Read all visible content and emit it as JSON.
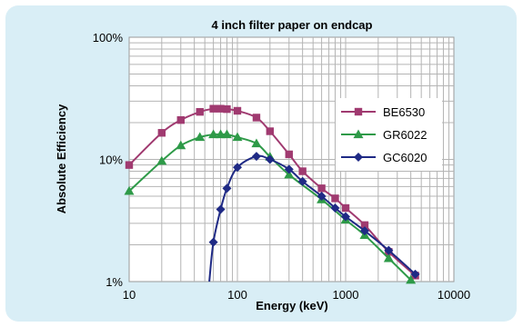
{
  "chart_data": {
    "type": "line",
    "title": "4 inch filter paper on endcap",
    "xlabel": "Energy (keV)",
    "ylabel": "Absolute Efficiency",
    "xscale": "log",
    "yscale": "log",
    "xlim": [
      10,
      10000
    ],
    "ylim": [
      0.01,
      1
    ],
    "grid": true,
    "legend_position": "right",
    "xticks": [
      {
        "value": 10,
        "label": "10"
      },
      {
        "value": 100,
        "label": "100"
      },
      {
        "value": 1000,
        "label": "1000"
      },
      {
        "value": 10000,
        "label": "10000"
      }
    ],
    "yticks": [
      {
        "value": 0.01,
        "label": "1%"
      },
      {
        "value": 0.1,
        "label": "10%"
      },
      {
        "value": 1,
        "label": "100%"
      }
    ],
    "series": [
      {
        "name": "BE6530",
        "color": "#a03a70",
        "marker": "square",
        "x": [
          10,
          20,
          30,
          45,
          60,
          70,
          80,
          100,
          150,
          200,
          300,
          400,
          600,
          800,
          1000,
          1500,
          2500,
          4400
        ],
        "y": [
          0.09,
          0.165,
          0.21,
          0.245,
          0.26,
          0.26,
          0.258,
          0.25,
          0.22,
          0.17,
          0.11,
          0.08,
          0.058,
          0.048,
          0.04,
          0.029,
          0.0175,
          0.0112
        ]
      },
      {
        "name": "GR6022",
        "color": "#2e9a48",
        "marker": "triangle",
        "x": [
          10,
          20,
          30,
          45,
          60,
          70,
          80,
          100,
          150,
          200,
          300,
          600,
          1000,
          1500,
          2500,
          4000
        ],
        "y": [
          0.055,
          0.097,
          0.13,
          0.152,
          0.16,
          0.16,
          0.16,
          0.152,
          0.135,
          0.105,
          0.075,
          0.047,
          0.032,
          0.024,
          0.0155,
          0.0103
        ]
      },
      {
        "name": "GC6020",
        "color": "#1f2a85",
        "marker": "diamond",
        "x": [
          55,
          60,
          70,
          80,
          100,
          150,
          200,
          300,
          400,
          600,
          800,
          1000,
          1500,
          2500,
          4400
        ],
        "y": [
          0.009,
          0.021,
          0.039,
          0.058,
          0.086,
          0.106,
          0.1,
          0.083,
          0.066,
          0.05,
          0.04,
          0.034,
          0.026,
          0.018,
          0.0115
        ]
      }
    ]
  }
}
